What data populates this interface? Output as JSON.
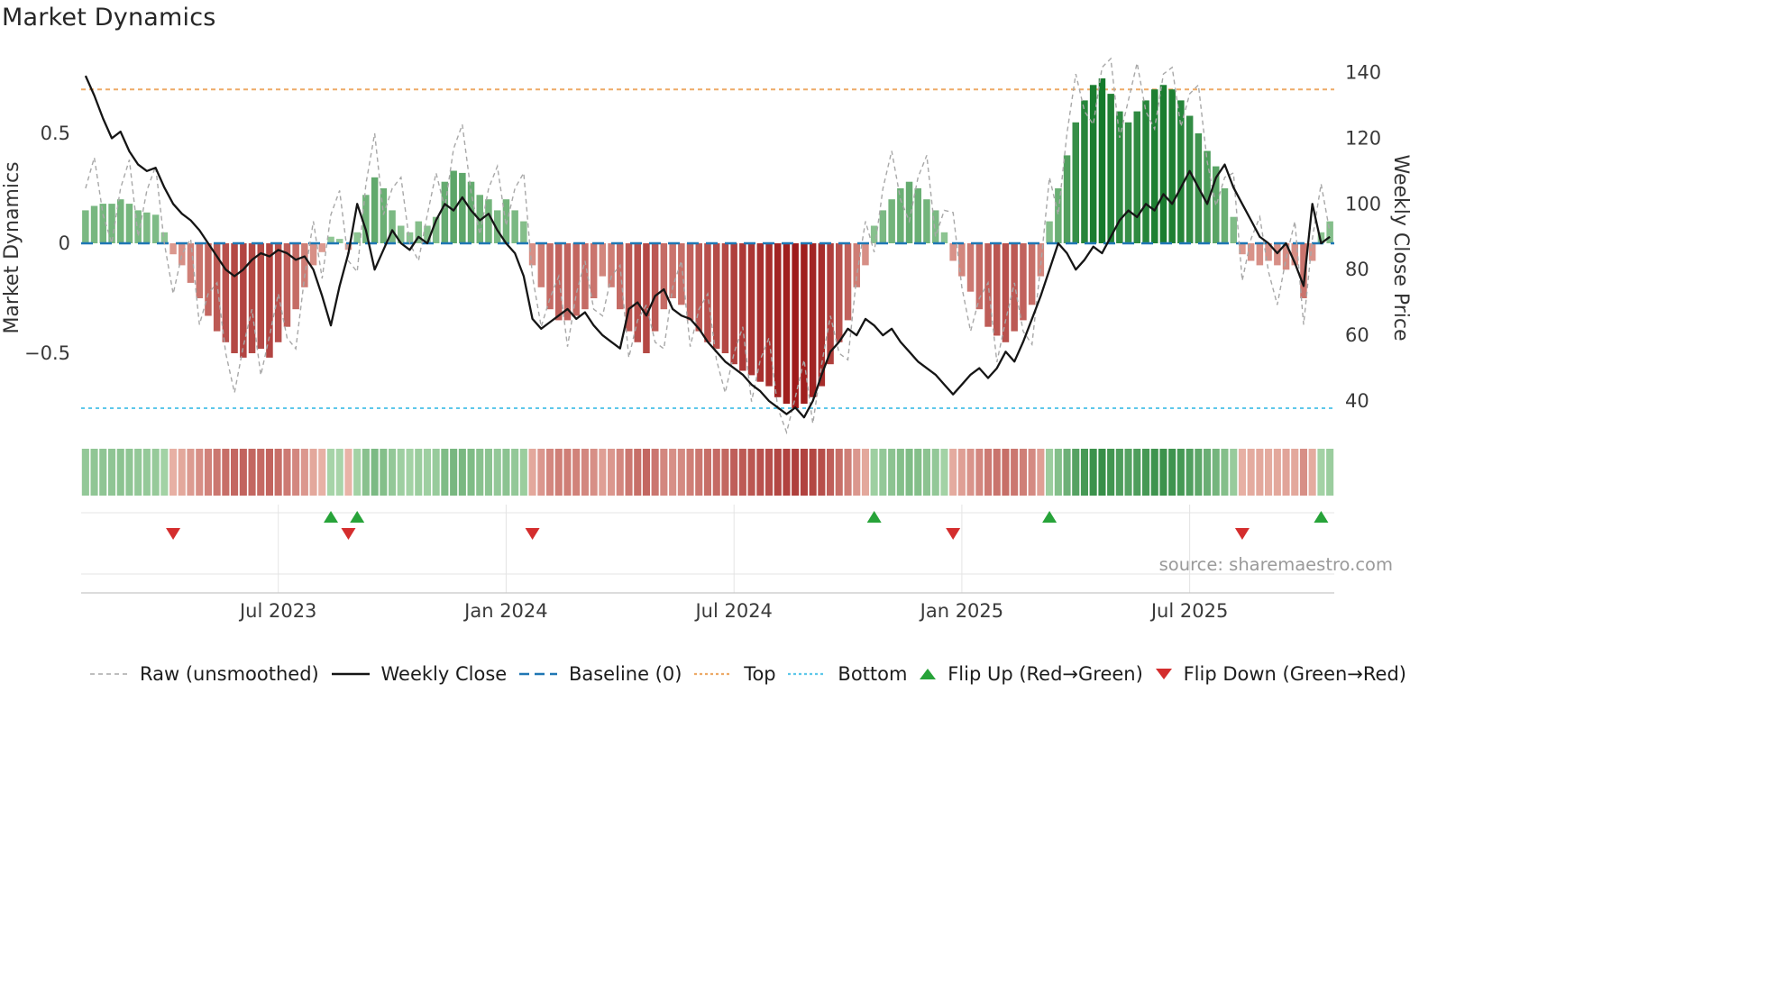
{
  "title": "Market Dynamics",
  "source": "source: sharemaestro.com",
  "colors": {
    "raw": "#a8a8a8",
    "close": "#151515",
    "baseline": "#1f77b4",
    "top": "#edaa67",
    "bottom": "#5ec8ea",
    "flip_up": "#27a339",
    "flip_down": "#d42d2d",
    "bar_green_light": "#bfe3bd",
    "bar_green_dark": "#157a2b",
    "bar_red_light": "#f5cdbf",
    "bar_red_dark": "#9e1b1b",
    "grid": "#e4e4e4",
    "spine": "#c6c6c6",
    "tick_text": "#3a3a3a"
  },
  "legend": {
    "items": [
      {
        "label": "Raw (unsmoothed)",
        "type": "dashed-line",
        "color_key": "raw"
      },
      {
        "label": "Weekly Close",
        "type": "solid-line",
        "color_key": "close"
      },
      {
        "label": "Baseline (0)",
        "type": "long-dash-line",
        "color_key": "baseline"
      },
      {
        "label": "Top",
        "type": "dotted-line",
        "color_key": "top"
      },
      {
        "label": "Bottom",
        "type": "dotted-line",
        "color_key": "bottom"
      },
      {
        "label": "Flip Up (Red→Green)",
        "type": "triangle-up",
        "color_key": "flip_up"
      },
      {
        "label": "Flip Down (Green→Red)",
        "type": "triangle-down",
        "color_key": "flip_down"
      }
    ]
  },
  "chart_data": {
    "type": "bar",
    "x_unit": "week",
    "weeks": 143,
    "left_axis": {
      "label": "Market Dynamics",
      "ticks": [
        0.5,
        0,
        -0.5
      ],
      "lim": [
        -0.9,
        0.86
      ]
    },
    "right_axis": {
      "label": "Weekly Close Price",
      "ticks": [
        140,
        120,
        100,
        80,
        60,
        40
      ],
      "lim": [
        28,
        146
      ]
    },
    "x_ticks": [
      {
        "label": "Jul 2023",
        "week": 22
      },
      {
        "label": "Jan 2024",
        "week": 48
      },
      {
        "label": "Jul 2024",
        "week": 74
      },
      {
        "label": "Jan 2025",
        "week": 100
      },
      {
        "label": "Jul 2025",
        "week": 126
      }
    ],
    "reference_lines": {
      "baseline": 0,
      "top": 0.7,
      "bottom": -0.75
    },
    "flip_up_weeks": [
      28,
      31,
      90,
      110,
      141
    ],
    "flip_down_weeks": [
      10,
      30,
      51,
      99,
      132
    ],
    "series": [
      {
        "name": "Oscillator (smoothed bars)",
        "axis": "left",
        "values": [
          0.15,
          0.17,
          0.18,
          0.18,
          0.2,
          0.18,
          0.15,
          0.14,
          0.13,
          0.05,
          -0.05,
          -0.1,
          -0.18,
          -0.25,
          -0.33,
          -0.4,
          -0.45,
          -0.5,
          -0.52,
          -0.5,
          -0.48,
          -0.52,
          -0.45,
          -0.38,
          -0.3,
          -0.2,
          -0.1,
          -0.04,
          0.03,
          0.02,
          -0.03,
          0.05,
          0.22,
          0.3,
          0.25,
          0.15,
          0.08,
          0.05,
          0.1,
          0.08,
          0.12,
          0.28,
          0.33,
          0.32,
          0.28,
          0.22,
          0.2,
          0.15,
          0.2,
          0.15,
          0.1,
          -0.1,
          -0.2,
          -0.3,
          -0.35,
          -0.35,
          -0.33,
          -0.3,
          -0.25,
          -0.15,
          -0.2,
          -0.3,
          -0.4,
          -0.45,
          -0.5,
          -0.4,
          -0.3,
          -0.25,
          -0.28,
          -0.35,
          -0.4,
          -0.45,
          -0.48,
          -0.5,
          -0.55,
          -0.58,
          -0.6,
          -0.63,
          -0.65,
          -0.7,
          -0.73,
          -0.75,
          -0.73,
          -0.7,
          -0.65,
          -0.55,
          -0.45,
          -0.35,
          -0.2,
          -0.1,
          0.08,
          0.15,
          0.2,
          0.25,
          0.28,
          0.25,
          0.2,
          0.15,
          0.05,
          -0.08,
          -0.15,
          -0.22,
          -0.3,
          -0.38,
          -0.42,
          -0.45,
          -0.4,
          -0.35,
          -0.28,
          -0.15,
          0.1,
          0.25,
          0.4,
          0.55,
          0.65,
          0.72,
          0.75,
          0.68,
          0.6,
          0.55,
          0.6,
          0.65,
          0.7,
          0.72,
          0.7,
          0.65,
          0.58,
          0.5,
          0.42,
          0.35,
          0.25,
          0.12,
          -0.05,
          -0.08,
          -0.1,
          -0.08,
          -0.1,
          -0.12,
          -0.1,
          -0.25,
          -0.08,
          0.05,
          0.1
        ]
      },
      {
        "name": "Raw (unsmoothed)",
        "axis": "left",
        "values": [
          0.25,
          0.39,
          0.13,
          0.0,
          0.25,
          0.38,
          0.03,
          0.24,
          0.35,
          0.0,
          -0.23,
          -0.05,
          0.02,
          -0.37,
          -0.23,
          -0.18,
          -0.5,
          -0.68,
          -0.47,
          -0.3,
          -0.6,
          -0.42,
          -0.23,
          -0.43,
          -0.48,
          -0.15,
          0.1,
          -0.16,
          0.13,
          0.24,
          -0.08,
          -0.13,
          0.27,
          0.5,
          0.13,
          0.25,
          0.3,
          0.0,
          -0.08,
          0.13,
          0.32,
          0.16,
          0.43,
          0.54,
          0.23,
          0.04,
          0.25,
          0.35,
          0.08,
          0.25,
          0.32,
          -0.15,
          -0.38,
          -0.25,
          -0.15,
          -0.47,
          -0.23,
          -0.08,
          -0.3,
          -0.33,
          -0.15,
          -0.1,
          -0.52,
          -0.35,
          -0.28,
          -0.45,
          -0.48,
          -0.2,
          -0.08,
          -0.47,
          -0.3,
          -0.23,
          -0.53,
          -0.68,
          -0.5,
          -0.38,
          -0.72,
          -0.53,
          -0.43,
          -0.75,
          -0.86,
          -0.7,
          -0.53,
          -0.82,
          -0.55,
          -0.33,
          -0.5,
          -0.53,
          -0.15,
          0.1,
          -0.04,
          0.25,
          0.42,
          0.2,
          0.1,
          0.3,
          0.4,
          0.03,
          0.15,
          0.14,
          -0.2,
          -0.4,
          -0.25,
          -0.18,
          -0.54,
          -0.35,
          -0.18,
          -0.4,
          -0.46,
          -0.1,
          0.3,
          0.13,
          0.5,
          0.77,
          0.6,
          0.54,
          0.8,
          0.84,
          0.48,
          0.65,
          0.82,
          0.6,
          0.52,
          0.77,
          0.8,
          0.53,
          0.68,
          0.72,
          0.37,
          0.17,
          0.3,
          0.32,
          -0.17,
          0.02,
          0.12,
          -0.13,
          -0.28,
          -0.07,
          0.1,
          -0.37,
          0.02,
          0.27,
          0.05
        ]
      },
      {
        "name": "Weekly Close",
        "axis": "right",
        "values": [
          139,
          133,
          126,
          120,
          122,
          116,
          112,
          110,
          111,
          105,
          100,
          97,
          95,
          92,
          88,
          84,
          80,
          78,
          80,
          83,
          85,
          84,
          86,
          85,
          83,
          84,
          80,
          72,
          63,
          75,
          85,
          100,
          92,
          80,
          86,
          92,
          88,
          86,
          90,
          88,
          95,
          100,
          98,
          102,
          98,
          95,
          97,
          92,
          88,
          85,
          78,
          65,
          62,
          64,
          66,
          68,
          65,
          67,
          63,
          60,
          58,
          56,
          68,
          70,
          66,
          72,
          74,
          68,
          66,
          65,
          62,
          58,
          55,
          52,
          50,
          48,
          45,
          43,
          40,
          38,
          36,
          38,
          35,
          40,
          48,
          55,
          58,
          62,
          60,
          65,
          63,
          60,
          62,
          58,
          55,
          52,
          50,
          48,
          45,
          42,
          45,
          48,
          50,
          47,
          50,
          55,
          52,
          58,
          65,
          72,
          80,
          88,
          85,
          80,
          83,
          87,
          85,
          90,
          95,
          98,
          96,
          100,
          98,
          103,
          100,
          105,
          110,
          105,
          100,
          108,
          112,
          105,
          100,
          95,
          90,
          88,
          85,
          88,
          82,
          75,
          100,
          88,
          90
        ]
      }
    ]
  }
}
